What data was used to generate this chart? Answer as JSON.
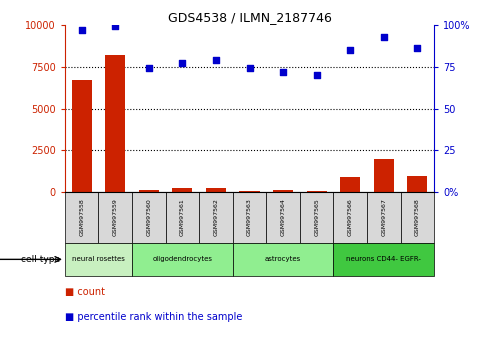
{
  "title": "GDS4538 / ILMN_2187746",
  "samples": [
    "GSM997558",
    "GSM997559",
    "GSM997560",
    "GSM997561",
    "GSM997562",
    "GSM997563",
    "GSM997564",
    "GSM997565",
    "GSM997566",
    "GSM997567",
    "GSM997568"
  ],
  "count_values": [
    6700,
    8200,
    120,
    250,
    230,
    100,
    130,
    80,
    900,
    2000,
    950
  ],
  "percentile_values": [
    97,
    99,
    74,
    77,
    79,
    74,
    72,
    70,
    85,
    93,
    86
  ],
  "cell_types": [
    {
      "label": "neural rosettes",
      "span": [
        0,
        2
      ],
      "color": "#c8f0c0"
    },
    {
      "label": "oligodendrocytes",
      "span": [
        2,
        5
      ],
      "color": "#90ee90"
    },
    {
      "label": "astrocytes",
      "span": [
        5,
        8
      ],
      "color": "#90ee90"
    },
    {
      "label": "neurons CD44- EGFR-",
      "span": [
        8,
        11
      ],
      "color": "#40c840"
    }
  ],
  "bar_color": "#cc2200",
  "dot_color": "#0000cc",
  "left_ylim": [
    0,
    10000
  ],
  "right_ylim": [
    0,
    100
  ],
  "left_yticks": [
    0,
    2500,
    5000,
    7500,
    10000
  ],
  "right_yticks": [
    0,
    25,
    50,
    75,
    100
  ],
  "left_yticklabels": [
    "0",
    "2500",
    "5000",
    "7500",
    "10000"
  ],
  "right_yticklabels": [
    "0%",
    "25",
    "50",
    "75",
    "100%"
  ],
  "grid_lines": [
    2500,
    5000,
    7500
  ],
  "cell_type_label": "cell type",
  "legend_count_label": "count",
  "legend_pct_label": "percentile rank within the sample",
  "bar_width": 0.6,
  "bg_color": "#ffffff",
  "tick_label_color_left": "#cc2200",
  "tick_label_color_right": "#0000cc",
  "sample_box_color": "#d8d8d8",
  "right_yticklabels_positions": [
    0,
    25,
    50,
    75,
    100
  ]
}
